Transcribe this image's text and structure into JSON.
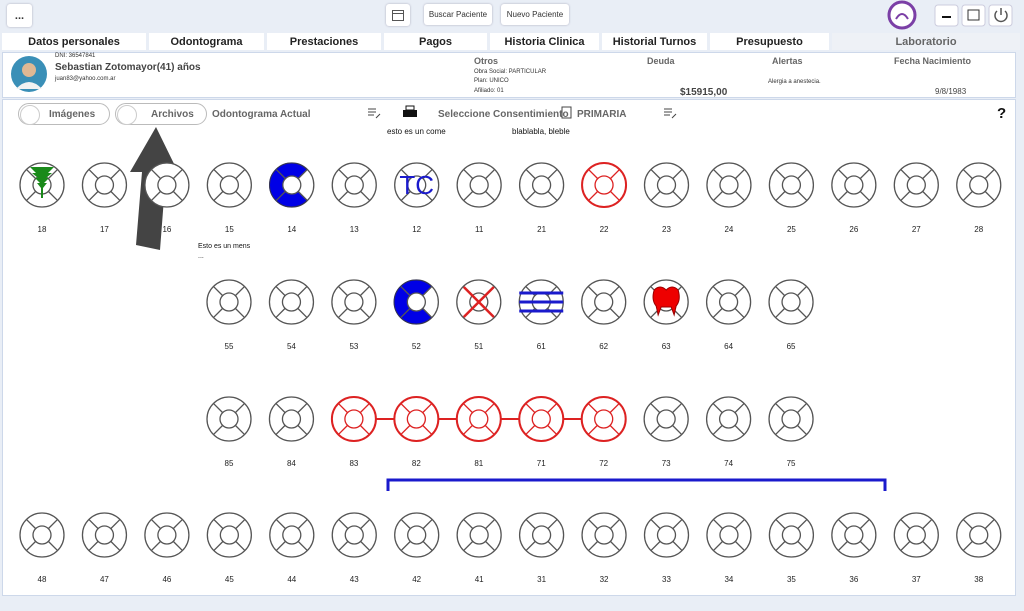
{
  "topbar": {
    "menu": "...",
    "search": "Buscar Paciente",
    "new_patient": "Nuevo Paciente"
  },
  "tabs": [
    "Datos personales",
    "Odontograma",
    "Prestaciones",
    "Pagos",
    "Historia Clinica",
    "Historial Turnos",
    "Presupuesto",
    "Laboratorio"
  ],
  "patient": {
    "dni": "DNI: 36547841",
    "name": "Sebastian Zotomayor(41) años",
    "email": "juan83@yahoo.com.ar"
  },
  "info": {
    "otros": {
      "title": "Otros",
      "lines": [
        "Obra Social: PARTICULAR",
        "Plan: UNICO",
        "Afiliado: 01"
      ]
    },
    "deuda": {
      "title": "Deuda",
      "value": "$15915,00"
    },
    "alertas": {
      "title": "Alertas",
      "value": "Alergia a anestecia."
    },
    "nacimiento": {
      "title": "Fecha Nacimiento",
      "value": "9/8/1983"
    }
  },
  "toolbar": {
    "images": "Imágenes",
    "files": "Archivos",
    "odontogram": "Odontograma Actual",
    "consent": "Seleccione Consentimiento",
    "mode": "PRIMARIA",
    "help": "?"
  },
  "notes": [
    "esto es un come",
    "blablabla, bleble",
    "Esto es un mens",
    "..."
  ],
  "tooth_mark": "TC",
  "rows": [
    [
      "18",
      "17",
      "16",
      "15",
      "14",
      "13",
      "12",
      "11",
      "21",
      "22",
      "23",
      "24",
      "25",
      "26",
      "27",
      "28"
    ],
    [
      "55",
      "54",
      "53",
      "52",
      "51",
      "61",
      "62",
      "63",
      "64",
      "65"
    ],
    [
      "85",
      "84",
      "83",
      "82",
      "81",
      "71",
      "72",
      "73",
      "74",
      "75"
    ],
    [
      "48",
      "47",
      "46",
      "45",
      "44",
      "43",
      "42",
      "41",
      "31",
      "32",
      "33",
      "34",
      "35",
      "36",
      "37",
      "38"
    ]
  ]
}
